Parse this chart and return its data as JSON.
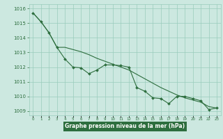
{
  "title": "Graphe pression niveau de la mer (hPa)",
  "bg_color": "#cce8e0",
  "plot_bg_color": "#cce8e0",
  "grid_color": "#99ccbb",
  "line_color": "#2d6e3e",
  "marker_color": "#2d6e3e",
  "footer_bg": "#2d6e3e",
  "footer_text": "#ffffff",
  "x_labels": [
    "0",
    "1",
    "2",
    "3",
    "4",
    "5",
    "6",
    "7",
    "8",
    "9",
    "10",
    "11",
    "12",
    "13",
    "14",
    "15",
    "16",
    "17",
    "18",
    "19",
    "20",
    "21",
    "22",
    "23"
  ],
  "ylim": [
    1008.7,
    1016.3
  ],
  "yticks": [
    1009,
    1010,
    1011,
    1012,
    1013,
    1014,
    1015,
    1016
  ],
  "series_markers": [
    1015.7,
    1015.1,
    1014.35,
    1013.35,
    1012.55,
    1012.0,
    1011.95,
    1011.55,
    1011.8,
    1012.15,
    1012.15,
    1012.1,
    1012.0,
    1010.6,
    1010.35,
    1009.9,
    1009.85,
    1009.5,
    1010.0,
    1010.0,
    1009.85,
    1009.7,
    1009.1,
    1009.2
  ],
  "series_smooth": [
    1015.7,
    1015.1,
    1014.35,
    1013.35,
    1013.35,
    1013.2,
    1013.05,
    1012.85,
    1012.6,
    1012.4,
    1012.2,
    1012.0,
    1011.8,
    1011.5,
    1011.2,
    1010.9,
    1010.6,
    1010.35,
    1010.1,
    1009.9,
    1009.75,
    1009.6,
    1009.3,
    1009.2
  ]
}
